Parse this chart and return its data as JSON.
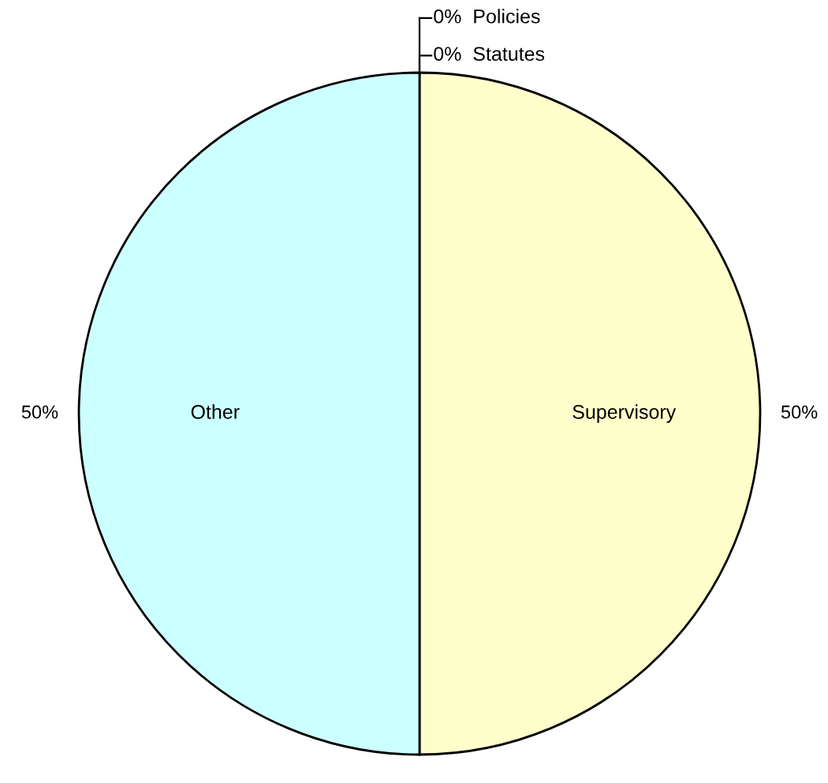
{
  "chart_data": {
    "type": "pie",
    "categories": [
      "Supervisory",
      "Other",
      "Statutes",
      "Policies"
    ],
    "values": [
      50,
      50,
      0,
      0
    ],
    "colors": [
      "#ffffcc",
      "#ccffff",
      null,
      null
    ],
    "value_labels": [
      "50%",
      "50%",
      "0%",
      "0%"
    ]
  }
}
